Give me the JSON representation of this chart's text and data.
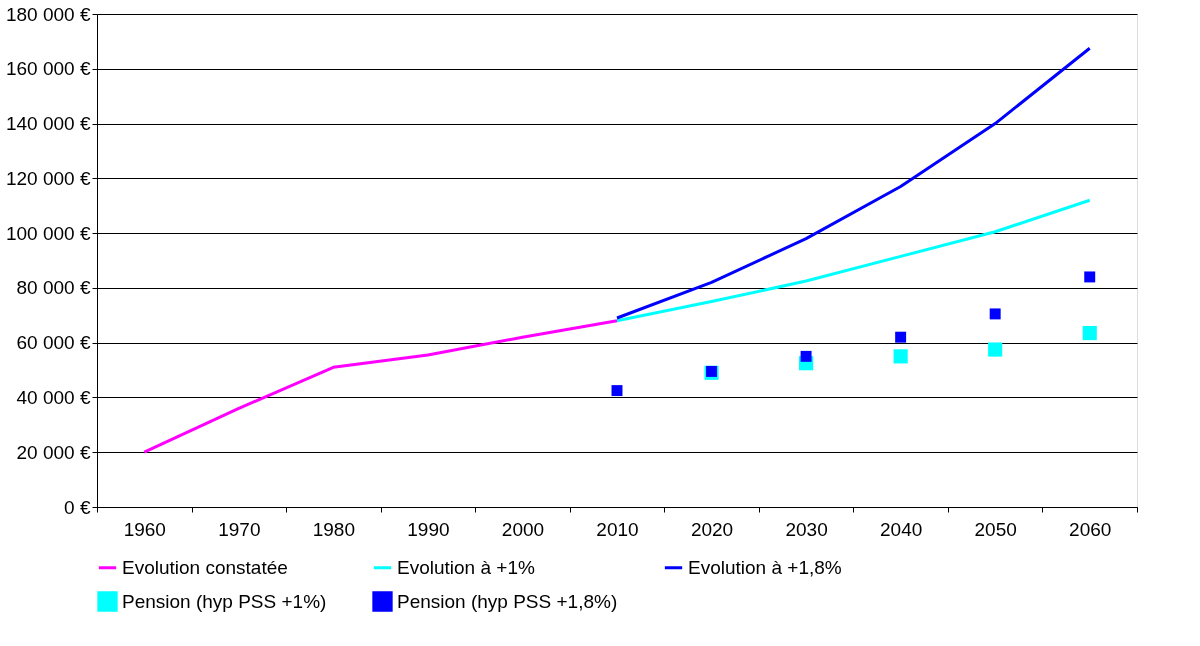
{
  "chart_data": {
    "type": "line",
    "categories": [
      "1960",
      "1970",
      "1980",
      "1990",
      "2000",
      "2010",
      "2020",
      "2030",
      "2040",
      "2050",
      "2060"
    ],
    "ylim": [
      0,
      180000
    ],
    "yticks": [
      {
        "value": 0,
        "label": "0 €"
      },
      {
        "value": 20000,
        "label": "20 000 €"
      },
      {
        "value": 40000,
        "label": "40 000 €"
      },
      {
        "value": 60000,
        "label": "60 000 €"
      },
      {
        "value": 80000,
        "label": "80 000 €"
      },
      {
        "value": 100000,
        "label": "100 000 €"
      },
      {
        "value": 120000,
        "label": "120 000 €"
      },
      {
        "value": 140000,
        "label": "140 000 €"
      },
      {
        "value": 160000,
        "label": "160 000 €"
      },
      {
        "value": 180000,
        "label": "180 000 €"
      }
    ],
    "grid": "y",
    "legend": "bottom",
    "line_style": "solid",
    "series": [
      {
        "name": "Evolution constatée",
        "color": "#ff00ff",
        "values": [
          20000,
          36000,
          51000,
          55500,
          62000,
          68000,
          null,
          null,
          null,
          null,
          null
        ]
      },
      {
        "name": "Evolution à +1%",
        "color": "#00ffff",
        "values": [
          null,
          null,
          null,
          null,
          null,
          68000,
          75000,
          82500,
          91500,
          100500,
          112000
        ]
      },
      {
        "name": "Evolution à +1,8%",
        "color": "#0000ff",
        "values": [
          null,
          null,
          null,
          null,
          null,
          69000,
          82000,
          98000,
          117000,
          140000,
          167500
        ]
      },
      {
        "name": "Pension (hyp PSS +1%)",
        "type": "scatter",
        "marker": "square",
        "color": "#00ffff",
        "values": [
          null,
          null,
          null,
          null,
          null,
          null,
          49000,
          52500,
          55000,
          57500,
          63500
        ]
      },
      {
        "name": "Pension (hyp PSS +1,8%)",
        "type": "scatter",
        "marker": "square",
        "color": "#0000ff",
        "values": [
          null,
          null,
          null,
          null,
          null,
          42500,
          49500,
          55000,
          62000,
          70500,
          84000
        ]
      }
    ]
  }
}
